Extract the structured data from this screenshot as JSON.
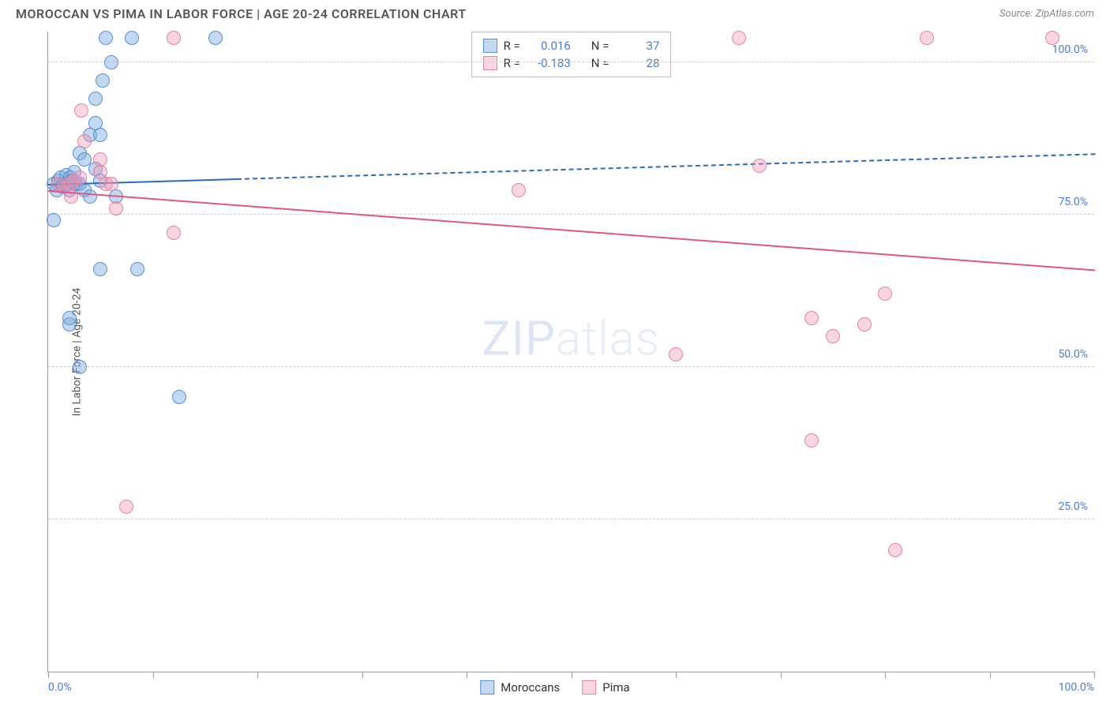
{
  "title": "MOROCCAN VS PIMA IN LABOR FORCE | AGE 20-24 CORRELATION CHART",
  "source": "Source: ZipAtlas.com",
  "ylabel": "In Labor Force | Age 20-24",
  "watermark_bold": "ZIP",
  "watermark_thin": "atlas",
  "chart": {
    "type": "scatter",
    "xlim": [
      0,
      100
    ],
    "ylim": [
      0,
      105
    ],
    "ytick_values": [
      25,
      50,
      75,
      100
    ],
    "ytick_labels": [
      "25.0%",
      "50.0%",
      "75.0%",
      "100.0%"
    ],
    "xtick_values": [
      0,
      10,
      20,
      30,
      40,
      50,
      60,
      70,
      80,
      90,
      100
    ],
    "xaxis_min_label": "0.0%",
    "xaxis_max_label": "100.0%",
    "background_color": "#ffffff",
    "grid_color": "#cccccc",
    "point_radius": 9,
    "series": [
      {
        "name": "Moroccans",
        "label": "Moroccans",
        "fill": "rgba(120,170,225,0.45)",
        "stroke": "#5a8fd0",
        "trend_color": "#2b6cb0",
        "r_value": "0.016",
        "n_value": "37",
        "trend": {
          "x1": 0,
          "y1": 80,
          "x2": 100,
          "y2": 85,
          "solid_until_x": 18
        },
        "points": [
          [
            0.5,
            80
          ],
          [
            0.8,
            79
          ],
          [
            1.0,
            80.5
          ],
          [
            1.2,
            81
          ],
          [
            1.4,
            79.5
          ],
          [
            1.5,
            80
          ],
          [
            1.7,
            81.5
          ],
          [
            1.8,
            80
          ],
          [
            2.0,
            79
          ],
          [
            2.1,
            81
          ],
          [
            2.3,
            80.5
          ],
          [
            2.5,
            82
          ],
          [
            2.7,
            80
          ],
          [
            0.5,
            74
          ],
          [
            2.0,
            57
          ],
          [
            2.0,
            58
          ],
          [
            4.0,
            88
          ],
          [
            4.5,
            94
          ],
          [
            4.5,
            90
          ],
          [
            5.0,
            88
          ],
          [
            5.2,
            97
          ],
          [
            5.5,
            104
          ],
          [
            6.0,
            100
          ],
          [
            8.0,
            104
          ],
          [
            3.0,
            85
          ],
          [
            3.5,
            84
          ],
          [
            3.0,
            80
          ],
          [
            3.5,
            79
          ],
          [
            4.0,
            78
          ],
          [
            5.0,
            66
          ],
          [
            8.5,
            66
          ],
          [
            3.0,
            50
          ],
          [
            12.5,
            45
          ],
          [
            6.5,
            78
          ],
          [
            16.0,
            104
          ],
          [
            4.5,
            82.5
          ],
          [
            5.0,
            80.5
          ]
        ]
      },
      {
        "name": "Pima",
        "label": "Pima",
        "fill": "rgba(240,150,180,0.40)",
        "stroke": "#e085a5",
        "trend_color": "#e05585",
        "r_value": "-0.183",
        "n_value": "28",
        "trend": {
          "x1": 0,
          "y1": 79,
          "x2": 100,
          "y2": 66,
          "solid_until_x": 100
        },
        "points": [
          [
            1.0,
            80
          ],
          [
            1.5,
            79.5
          ],
          [
            2.0,
            80
          ],
          [
            2.2,
            78
          ],
          [
            2.5,
            80.5
          ],
          [
            3.0,
            81
          ],
          [
            3.2,
            92
          ],
          [
            3.5,
            87
          ],
          [
            5.0,
            84
          ],
          [
            5.0,
            82
          ],
          [
            5.5,
            80
          ],
          [
            6.0,
            80
          ],
          [
            6.5,
            76
          ],
          [
            12.0,
            104
          ],
          [
            12.0,
            72
          ],
          [
            7.5,
            27
          ],
          [
            45.0,
            79
          ],
          [
            66.0,
            104
          ],
          [
            68.0,
            83
          ],
          [
            60.0,
            52
          ],
          [
            73.0,
            58
          ],
          [
            75.0,
            55
          ],
          [
            78.0,
            57
          ],
          [
            73.0,
            38
          ],
          [
            80.0,
            62
          ],
          [
            81.0,
            20
          ],
          [
            84.0,
            104
          ],
          [
            96.0,
            104
          ]
        ]
      }
    ]
  },
  "stats_labels": {
    "r": "R  =",
    "n": "N  ="
  },
  "legend": {
    "items": [
      {
        "label": "Moroccans",
        "fill": "rgba(120,170,225,0.45)",
        "stroke": "#5a8fd0"
      },
      {
        "label": "Pima",
        "fill": "rgba(240,150,180,0.40)",
        "stroke": "#e085a5"
      }
    ]
  }
}
